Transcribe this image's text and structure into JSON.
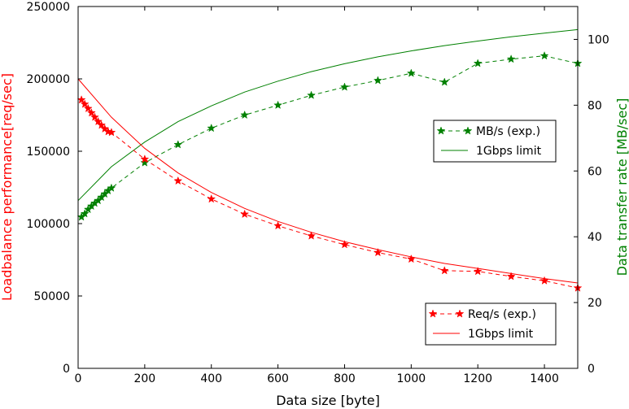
{
  "chart_data": {
    "type": "line",
    "xlabel": "Data size [byte]",
    "ylabel_left": "Loadbalance performance[req/sec]",
    "ylabel_right": "Data transfer rate [MB/sec]",
    "xlim": [
      0,
      1500
    ],
    "ylim_left": [
      0,
      250000
    ],
    "ylim_right": [
      0,
      110
    ],
    "x_ticks": [
      0,
      200,
      400,
      600,
      800,
      1000,
      1200,
      1400
    ],
    "y_left_ticks": [
      0,
      50000,
      100000,
      150000,
      200000,
      250000
    ],
    "y_right_ticks": [
      0,
      20,
      40,
      60,
      80,
      100
    ],
    "grid": false,
    "series": [
      {
        "name": "MB/s (exp.)",
        "axis": "right",
        "color": "#008000",
        "style": "dashed-star",
        "x": [
          10,
          20,
          30,
          40,
          50,
          60,
          70,
          80,
          90,
          100,
          200,
          300,
          400,
          500,
          600,
          700,
          800,
          900,
          1000,
          1100,
          1200,
          1300,
          1400,
          1500
        ],
        "values": [
          46,
          47,
          48.3,
          49.3,
          50.2,
          51,
          52,
          53,
          54,
          54.8,
          62.5,
          68,
          73,
          77,
          80,
          83,
          85.5,
          87.5,
          89.7,
          87,
          92.7,
          94,
          95,
          92.7
        ]
      },
      {
        "name": "1Gbps limit",
        "axis": "right",
        "color": "#008000",
        "style": "solid",
        "x": [
          0,
          100,
          200,
          300,
          400,
          500,
          600,
          700,
          800,
          900,
          1000,
          1100,
          1200,
          1300,
          1400,
          1500
        ],
        "values": [
          51,
          61.3,
          68.8,
          75,
          79.8,
          84,
          87.3,
          90.2,
          92.6,
          94.7,
          96.5,
          98.1,
          99.5,
          100.8,
          101.9,
          103
        ]
      },
      {
        "name": "Req/s  (exp.)",
        "axis": "left",
        "color": "#ff0000",
        "style": "dashed-star",
        "x": [
          10,
          20,
          30,
          40,
          50,
          60,
          70,
          80,
          90,
          100,
          200,
          300,
          400,
          500,
          600,
          700,
          800,
          900,
          1000,
          1100,
          1200,
          1300,
          1400,
          1500
        ],
        "values": [
          185500,
          182500,
          179500,
          176500,
          173500,
          170500,
          168000,
          165500,
          163500,
          163000,
          144500,
          129500,
          117000,
          106500,
          98500,
          91500,
          85500,
          80000,
          75500,
          67500,
          67000,
          63500,
          60500,
          55500
        ]
      },
      {
        "name": "1Gbps limit",
        "axis": "left",
        "color": "#ff0000",
        "style": "solid",
        "x": [
          0,
          100,
          200,
          300,
          400,
          500,
          600,
          700,
          800,
          900,
          1000,
          1100,
          1200,
          1300,
          1400,
          1500
        ],
        "values": [
          200000,
          173500,
          152000,
          135000,
          121500,
          110500,
          101500,
          94000,
          87500,
          82000,
          77000,
          72500,
          69000,
          65500,
          62000,
          59000
        ]
      }
    ],
    "legends": [
      {
        "placement": "center-right",
        "entries": [
          {
            "series": 0,
            "label": "MB/s (exp.)"
          },
          {
            "series": 1,
            "label": "1Gbps limit"
          }
        ]
      },
      {
        "placement": "bottom-right",
        "entries": [
          {
            "series": 2,
            "label": "Req/s  (exp.)"
          },
          {
            "series": 3,
            "label": "1Gbps limit"
          }
        ]
      }
    ]
  }
}
